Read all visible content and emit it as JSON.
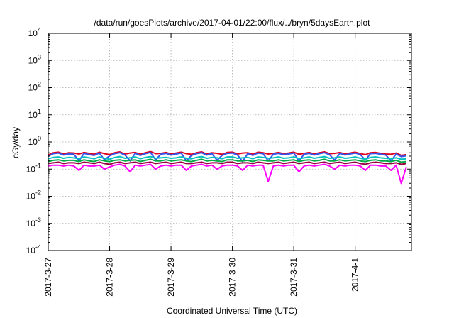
{
  "chart_data": {
    "type": "line",
    "title": "/data/run/goesPlots/archive/2017-04-01/22:00/flux/../bryn/5daysEarth.plot",
    "xlabel": "Coordinated Universal Time (UTC)",
    "ylabel": "cGy/day",
    "y_scale": "log",
    "ylim": [
      0.0001,
      10000
    ],
    "y_ticks": [
      {
        "value": 10000,
        "base": "10",
        "exp": "4"
      },
      {
        "value": 1000,
        "base": "10",
        "exp": "3"
      },
      {
        "value": 100,
        "base": "10",
        "exp": "2"
      },
      {
        "value": 10,
        "base": "10",
        "exp": "1"
      },
      {
        "value": 1,
        "base": "10",
        "exp": "0"
      },
      {
        "value": 0.1,
        "base": "10",
        "exp": "-1"
      },
      {
        "value": 0.01,
        "base": "10",
        "exp": "-2"
      },
      {
        "value": 0.001,
        "base": "10",
        "exp": "-3"
      },
      {
        "value": 0.0001,
        "base": "10",
        "exp": "-4"
      }
    ],
    "x_range": [
      "2017-03-27 00:00",
      "2017-04-01 22:00"
    ],
    "x_ticks": [
      {
        "value": "2017-03-27 00:00",
        "label": "2017-3-27"
      },
      {
        "value": "2017-03-28 00:00",
        "label": "2017-3-28"
      },
      {
        "value": "2017-03-29 00:00",
        "label": "2017-3-29"
      },
      {
        "value": "2017-03-30 00:00",
        "label": "2017-3-30"
      },
      {
        "value": "2017-03-31 00:00",
        "label": "2017-3-31"
      },
      {
        "value": "2017-04-01 00:00",
        "label": "2017-4-1"
      }
    ],
    "grid": true,
    "x_step_hours": 2,
    "series": [
      {
        "color": "#e00020",
        "values": [
          0.33,
          0.4,
          0.42,
          0.36,
          0.4,
          0.39,
          0.36,
          0.41,
          0.38,
          0.35,
          0.42,
          0.37,
          0.34,
          0.4,
          0.43,
          0.36,
          0.39,
          0.41,
          0.35,
          0.4,
          0.44,
          0.37,
          0.38,
          0.41,
          0.36,
          0.39,
          0.42,
          0.37,
          0.35,
          0.4,
          0.43,
          0.36,
          0.4,
          0.38,
          0.35,
          0.41,
          0.42,
          0.36,
          0.39,
          0.4,
          0.35,
          0.42,
          0.4,
          0.36,
          0.38,
          0.41,
          0.37,
          0.39,
          0.42,
          0.35,
          0.38,
          0.41,
          0.36,
          0.4,
          0.43,
          0.37,
          0.38,
          0.41,
          0.36,
          0.39,
          0.42,
          0.37,
          0.34,
          0.4,
          0.41,
          0.38,
          0.36,
          0.35,
          0.39,
          0.32,
          0.34
        ]
      },
      {
        "color": "#3355ee",
        "values": [
          0.3,
          0.37,
          0.39,
          0.33,
          0.36,
          0.35,
          0.2,
          0.38,
          0.34,
          0.32,
          0.39,
          0.22,
          0.31,
          0.37,
          0.4,
          0.33,
          0.2,
          0.38,
          0.32,
          0.37,
          0.41,
          0.22,
          0.35,
          0.38,
          0.33,
          0.36,
          0.39,
          0.2,
          0.32,
          0.37,
          0.4,
          0.33,
          0.37,
          0.21,
          0.32,
          0.38,
          0.39,
          0.33,
          0.19,
          0.37,
          0.32,
          0.39,
          0.37,
          0.2,
          0.35,
          0.38,
          0.34,
          0.36,
          0.39,
          0.2,
          0.35,
          0.38,
          0.33,
          0.37,
          0.4,
          0.34,
          0.21,
          0.38,
          0.33,
          0.36,
          0.39,
          0.34,
          0.22,
          0.37,
          0.38,
          0.35,
          0.33,
          0.2,
          0.36,
          0.29,
          0.31
        ]
      },
      {
        "color": "#00c0c0",
        "values": [
          0.24,
          0.27,
          0.28,
          0.25,
          0.27,
          0.26,
          0.24,
          0.28,
          0.26,
          0.24,
          0.28,
          0.25,
          0.23,
          0.27,
          0.29,
          0.25,
          0.26,
          0.28,
          0.24,
          0.27,
          0.29,
          0.25,
          0.26,
          0.27,
          0.25,
          0.26,
          0.28,
          0.25,
          0.24,
          0.27,
          0.29,
          0.25,
          0.27,
          0.26,
          0.24,
          0.28,
          0.28,
          0.25,
          0.26,
          0.27,
          0.24,
          0.28,
          0.27,
          0.25,
          0.26,
          0.28,
          0.25,
          0.26,
          0.28,
          0.24,
          0.26,
          0.28,
          0.25,
          0.27,
          0.29,
          0.25,
          0.26,
          0.28,
          0.25,
          0.26,
          0.28,
          0.25,
          0.23,
          0.27,
          0.28,
          0.26,
          0.25,
          0.24,
          0.26,
          0.23,
          0.24
        ]
      },
      {
        "color": "#00aa44",
        "values": [
          0.19,
          0.21,
          0.22,
          0.2,
          0.21,
          0.21,
          0.19,
          0.22,
          0.2,
          0.19,
          0.22,
          0.2,
          0.19,
          0.21,
          0.22,
          0.2,
          0.21,
          0.22,
          0.19,
          0.21,
          0.23,
          0.2,
          0.2,
          0.22,
          0.2,
          0.21,
          0.22,
          0.2,
          0.19,
          0.21,
          0.23,
          0.2,
          0.21,
          0.2,
          0.19,
          0.22,
          0.22,
          0.2,
          0.2,
          0.21,
          0.19,
          0.22,
          0.21,
          0.2,
          0.2,
          0.22,
          0.2,
          0.21,
          0.22,
          0.19,
          0.21,
          0.22,
          0.2,
          0.21,
          0.23,
          0.2,
          0.2,
          0.22,
          0.2,
          0.21,
          0.22,
          0.2,
          0.19,
          0.21,
          0.22,
          0.2,
          0.2,
          0.19,
          0.21,
          0.18,
          0.19
        ]
      },
      {
        "color": "#990040",
        "values": [
          0.16,
          0.17,
          0.18,
          0.16,
          0.17,
          0.17,
          0.16,
          0.18,
          0.17,
          0.16,
          0.18,
          0.16,
          0.15,
          0.17,
          0.18,
          0.16,
          0.17,
          0.18,
          0.16,
          0.17,
          0.18,
          0.16,
          0.17,
          0.18,
          0.16,
          0.17,
          0.18,
          0.16,
          0.16,
          0.17,
          0.18,
          0.16,
          0.17,
          0.17,
          0.16,
          0.18,
          0.18,
          0.16,
          0.17,
          0.17,
          0.16,
          0.18,
          0.17,
          0.16,
          0.17,
          0.18,
          0.16,
          0.17,
          0.18,
          0.16,
          0.17,
          0.18,
          0.16,
          0.17,
          0.18,
          0.16,
          0.17,
          0.18,
          0.16,
          0.17,
          0.18,
          0.16,
          0.15,
          0.17,
          0.18,
          0.17,
          0.16,
          0.16,
          0.17,
          0.15,
          0.16
        ]
      },
      {
        "color": "#ff00ff",
        "values": [
          0.13,
          0.14,
          0.14,
          0.13,
          0.14,
          0.13,
          0.09,
          0.14,
          0.13,
          0.13,
          0.14,
          0.1,
          0.12,
          0.14,
          0.15,
          0.13,
          0.08,
          0.14,
          0.13,
          0.14,
          0.15,
          0.1,
          0.13,
          0.14,
          0.13,
          0.14,
          0.14,
          0.09,
          0.13,
          0.14,
          0.15,
          0.13,
          0.14,
          0.1,
          0.13,
          0.14,
          0.14,
          0.13,
          0.09,
          0.14,
          0.13,
          0.14,
          0.14,
          0.035,
          0.13,
          0.14,
          0.13,
          0.14,
          0.14,
          0.08,
          0.13,
          0.14,
          0.13,
          0.14,
          0.15,
          0.13,
          0.1,
          0.14,
          0.13,
          0.14,
          0.14,
          0.13,
          0.09,
          0.14,
          0.14,
          0.13,
          0.13,
          0.09,
          0.14,
          0.03,
          0.12
        ]
      }
    ]
  }
}
